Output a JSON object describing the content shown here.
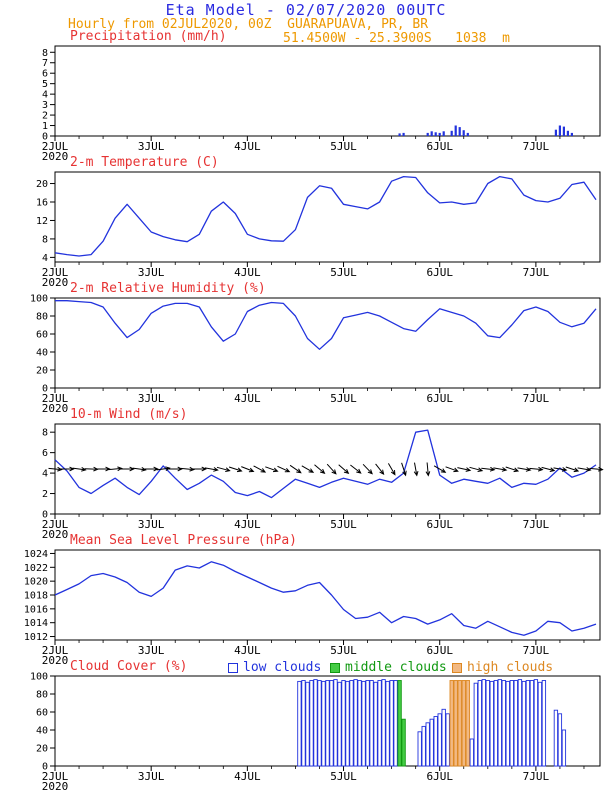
{
  "header": {
    "title": "Eta Model - 02/07/2020 00UTC",
    "subtitle": "Hourly from 02JUL2020, 00Z  GUARAPUAVA, PR, BR",
    "location_line": "51.4500W - 25.3900S   1038  m"
  },
  "colors": {
    "title_blue": "#2a2ae0",
    "orange": "#ee9900",
    "red": "#e63333",
    "line_blue": "#2233dd",
    "cloud_low": "#2233dd",
    "cloud_mid_fill": "#44cc44",
    "cloud_mid_stroke": "#119911",
    "cloud_high_fill": "#f2b983",
    "cloud_high_stroke": "#dd8822"
  },
  "time_axis": {
    "end_hour": 136,
    "minor_step": 6,
    "sample_hours": [
      0,
      3,
      6,
      9,
      12,
      15,
      18,
      21,
      24,
      27,
      30,
      33,
      36,
      39,
      42,
      45,
      48,
      51,
      54,
      57,
      60,
      63,
      66,
      69,
      72,
      75,
      78,
      81,
      84,
      87,
      90,
      93,
      96,
      99,
      102,
      105,
      108,
      111,
      114,
      117,
      120,
      123,
      126,
      129,
      132,
      135
    ],
    "day_ticks": [
      {
        "hour": 0,
        "label": "2JUL",
        "sublabel": "2020"
      },
      {
        "hour": 24,
        "label": "3JUL"
      },
      {
        "hour": 48,
        "label": "4JUL"
      },
      {
        "hour": 72,
        "label": "5JUL"
      },
      {
        "hour": 96,
        "label": "6JUL"
      },
      {
        "hour": 120,
        "label": "7JUL"
      }
    ]
  },
  "chart_data": [
    {
      "id": "precipitation",
      "title": "Precipitation (mm/h)",
      "type": "bar",
      "ylim": [
        0,
        8.6
      ],
      "yticks": [
        0,
        1,
        2,
        3,
        4,
        5,
        6,
        7,
        8
      ],
      "bars": {
        "t": [
          86,
          87,
          93,
          94,
          95,
          96,
          97,
          99,
          100,
          101,
          102,
          103,
          125,
          126,
          127,
          128,
          129
        ],
        "v": [
          0.25,
          0.3,
          0.3,
          0.45,
          0.35,
          0.3,
          0.45,
          0.5,
          1.0,
          0.85,
          0.55,
          0.3,
          0.6,
          1.0,
          0.9,
          0.5,
          0.3
        ]
      }
    },
    {
      "id": "temperature-2m",
      "title": "2-m Temperature (C)",
      "type": "line",
      "ylim": [
        3,
        22.5
      ],
      "yticks": [
        4,
        8,
        12,
        16,
        20
      ],
      "values": [
        5.0,
        4.6,
        4.3,
        4.6,
        7.5,
        12.5,
        15.5,
        12.5,
        9.5,
        8.5,
        7.8,
        7.4,
        9.0,
        14.0,
        16.0,
        13.5,
        9.0,
        8.0,
        7.6,
        7.5,
        10.0,
        17.0,
        19.5,
        19.0,
        15.5,
        15.0,
        14.5,
        16.0,
        20.5,
        21.5,
        21.3,
        18.0,
        15.8,
        16.0,
        15.5,
        15.8,
        20.0,
        21.5,
        21.0,
        17.5,
        16.3,
        16.0,
        16.8,
        19.8,
        20.3,
        16.5
      ]
    },
    {
      "id": "relative-humidity-2m",
      "title": "2-m Relative Humidity (%)",
      "type": "line",
      "ylim": [
        0,
        100
      ],
      "yticks": [
        0,
        20,
        40,
        60,
        80,
        100
      ],
      "values": [
        97,
        97,
        96,
        95,
        90,
        72,
        56,
        65,
        83,
        91,
        94,
        94,
        90,
        68,
        52,
        60,
        85,
        92,
        95,
        94,
        80,
        55,
        43,
        55,
        78,
        81,
        84,
        80,
        73,
        66,
        63,
        76,
        88,
        84,
        80,
        72,
        58,
        56,
        70,
        86,
        90,
        85,
        73,
        68,
        72,
        88
      ]
    },
    {
      "id": "wind-10m",
      "title": "10-m Wind (m/s)",
      "type": "line",
      "ylim": [
        0,
        8.8
      ],
      "yticks": [
        0,
        2,
        4,
        6,
        8
      ],
      "values": [
        5.3,
        4.2,
        2.6,
        2.0,
        2.8,
        3.5,
        2.6,
        1.9,
        3.2,
        4.7,
        3.5,
        2.4,
        3.0,
        3.8,
        3.2,
        2.1,
        1.8,
        2.2,
        1.6,
        2.5,
        3.4,
        3.0,
        2.6,
        3.1,
        3.5,
        3.2,
        2.9,
        3.4,
        3.1,
        4.0,
        8.0,
        8.2,
        3.8,
        3.0,
        3.4,
        3.2,
        3.0,
        3.5,
        2.6,
        3.0,
        2.9,
        3.4,
        4.5,
        3.6,
        4.0,
        4.8
      ],
      "arrows": {
        "anchor_value": 4.4,
        "angles_deg": [
          5,
          0,
          8,
          3,
          0,
          -5,
          0,
          8,
          0,
          -8,
          0,
          5,
          0,
          10,
          15,
          18,
          22,
          28,
          20,
          25,
          35,
          30,
          40,
          48,
          42,
          38,
          46,
          52,
          60,
          72,
          80,
          85,
          30,
          20,
          12,
          15,
          6,
          10,
          18,
          10,
          5,
          14,
          10,
          18,
          10,
          5
        ]
      }
    },
    {
      "id": "mslp",
      "title": "Mean Sea Level Pressure (hPa)",
      "type": "line",
      "ylim": [
        1011.5,
        1024.5
      ],
      "yticks": [
        1012,
        1014,
        1016,
        1018,
        1020,
        1022,
        1024
      ],
      "values": [
        1018.0,
        1018.8,
        1019.6,
        1020.8,
        1021.1,
        1020.6,
        1019.8,
        1018.4,
        1017.8,
        1019.0,
        1021.6,
        1022.2,
        1021.9,
        1022.8,
        1022.3,
        1021.4,
        1020.6,
        1019.8,
        1019.0,
        1018.4,
        1018.6,
        1019.4,
        1019.8,
        1018.0,
        1015.9,
        1014.6,
        1014.8,
        1015.5,
        1014.0,
        1014.9,
        1014.6,
        1013.8,
        1014.4,
        1015.3,
        1013.6,
        1013.2,
        1014.2,
        1013.4,
        1012.6,
        1012.2,
        1012.8,
        1014.2,
        1014.0,
        1012.8,
        1013.2,
        1013.8
      ]
    },
    {
      "id": "cloud-cover",
      "title": "Cloud Cover (%)",
      "type": "bar",
      "ylim": [
        0,
        100
      ],
      "yticks": [
        0,
        20,
        40,
        60,
        80,
        100
      ],
      "legend": [
        {
          "label": "low clouds",
          "category": "l"
        },
        {
          "label": "middle clouds",
          "category": "m"
        },
        {
          "label": "high clouds",
          "category": "h"
        }
      ],
      "bars": {
        "t": [
          61,
          62,
          63,
          64,
          65,
          66,
          67,
          68,
          69,
          70,
          71,
          72,
          73,
          74,
          75,
          76,
          77,
          78,
          79,
          80,
          81,
          82,
          83,
          84,
          85,
          86,
          87,
          91,
          92,
          93,
          94,
          95,
          96,
          97,
          98,
          99,
          100,
          101,
          102,
          103,
          104,
          105,
          106,
          107,
          108,
          109,
          110,
          111,
          112,
          113,
          114,
          115,
          116,
          117,
          118,
          119,
          120,
          121,
          122,
          125,
          126,
          127
        ],
        "v": [
          94,
          95,
          93,
          95,
          96,
          95,
          94,
          95,
          95,
          96,
          93,
          95,
          94,
          95,
          96,
          95,
          94,
          95,
          95,
          93,
          95,
          96,
          94,
          95,
          95,
          95,
          52,
          38,
          44,
          48,
          52,
          55,
          58,
          63,
          58,
          95,
          95,
          95,
          95,
          95,
          30,
          92,
          95,
          96,
          95,
          94,
          95,
          96,
          95,
          94,
          95,
          95,
          96,
          94,
          95,
          95,
          96,
          93,
          95,
          62,
          58,
          40
        ],
        "c": [
          "l",
          "l",
          "l",
          "l",
          "l",
          "l",
          "l",
          "l",
          "l",
          "l",
          "l",
          "l",
          "l",
          "l",
          "l",
          "l",
          "l",
          "l",
          "l",
          "l",
          "l",
          "l",
          "l",
          "l",
          "l",
          "m",
          "m",
          "l",
          "l",
          "l",
          "l",
          "l",
          "l",
          "l",
          "l",
          "h",
          "h",
          "h",
          "h",
          "h",
          "l",
          "l",
          "l",
          "l",
          "l",
          "l",
          "l",
          "l",
          "l",
          "l",
          "l",
          "l",
          "l",
          "l",
          "l",
          "l",
          "l",
          "l",
          "l",
          "l",
          "l",
          "l"
        ]
      }
    }
  ]
}
